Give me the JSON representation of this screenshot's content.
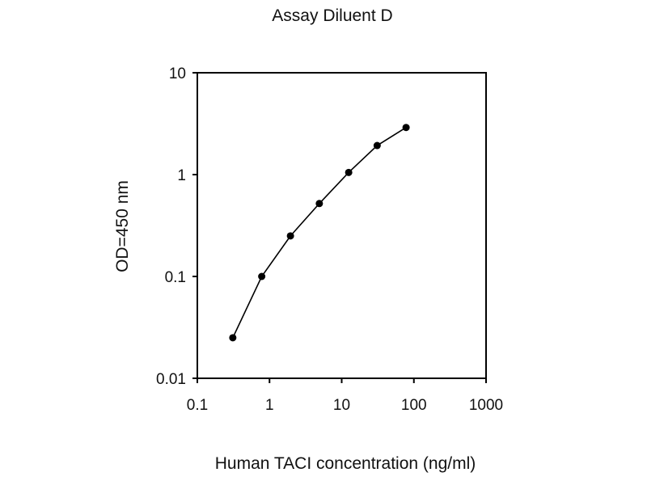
{
  "chart_data": {
    "type": "line",
    "title": "Assay Diluent D",
    "xlabel": "Human TACI concentration (ng/ml)",
    "ylabel": "OD=450 nm",
    "x_scale": "log",
    "y_scale": "log",
    "xlim": [
      0.1,
      1000
    ],
    "ylim": [
      0.01,
      10
    ],
    "x_ticks": [
      0.1,
      1,
      10,
      100,
      1000
    ],
    "x_tick_labels": [
      "0.1",
      "1",
      "10",
      "100",
      "1000"
    ],
    "y_ticks": [
      0.01,
      0.1,
      1,
      10
    ],
    "y_tick_labels": [
      "0.01",
      "0.1",
      "1",
      "10"
    ],
    "grid": false,
    "series": [
      {
        "x": [
          0.31,
          0.78,
          1.95,
          4.9,
          12.5,
          31,
          78
        ],
        "y": [
          0.025,
          0.1,
          0.25,
          0.52,
          1.05,
          1.93,
          2.9
        ],
        "color": "#000000",
        "marker": "circle"
      }
    ]
  }
}
